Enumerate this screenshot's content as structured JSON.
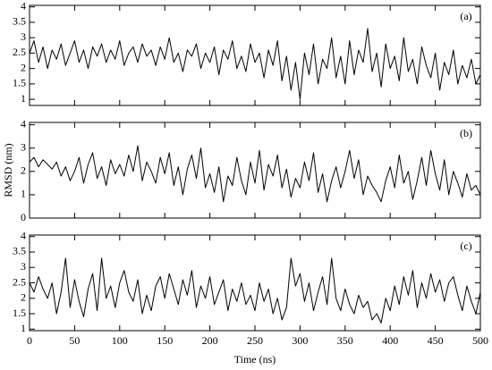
{
  "chart_data": [
    {
      "type": "line",
      "annotation": "(a)",
      "color": "#000000",
      "xlim": [
        0,
        500
      ],
      "xticks": [
        0,
        50,
        100,
        150,
        200,
        250,
        300,
        350,
        400,
        450,
        500
      ],
      "ylim": [
        0.8,
        4.05
      ],
      "yticks": [
        1,
        1.5,
        2,
        2.5,
        3,
        3.5,
        4
      ],
      "x": [
        0,
        5,
        10,
        15,
        20,
        25,
        30,
        35,
        40,
        45,
        50,
        55,
        60,
        65,
        70,
        75,
        80,
        85,
        90,
        95,
        100,
        105,
        110,
        115,
        120,
        125,
        130,
        135,
        140,
        145,
        150,
        155,
        160,
        165,
        170,
        175,
        180,
        185,
        190,
        195,
        200,
        205,
        210,
        215,
        220,
        225,
        230,
        235,
        240,
        245,
        250,
        255,
        260,
        265,
        270,
        275,
        280,
        285,
        290,
        295,
        300,
        305,
        310,
        315,
        320,
        325,
        330,
        335,
        340,
        345,
        350,
        355,
        360,
        365,
        370,
        375,
        380,
        385,
        390,
        395,
        400,
        405,
        410,
        415,
        420,
        425,
        430,
        435,
        440,
        445,
        450,
        455,
        460,
        465,
        470,
        475,
        480,
        485,
        490,
        495,
        500
      ],
      "values": [
        2.5,
        2.9,
        2.2,
        2.7,
        2.0,
        2.6,
        2.3,
        2.8,
        2.1,
        2.5,
        2.9,
        2.2,
        2.6,
        2.0,
        2.7,
        2.4,
        2.8,
        2.2,
        2.6,
        2.3,
        2.9,
        2.1,
        2.5,
        2.7,
        2.2,
        2.8,
        2.4,
        2.6,
        2.1,
        2.7,
        2.3,
        3.0,
        2.2,
        2.5,
        1.9,
        2.6,
        2.4,
        2.8,
        2.0,
        2.5,
        2.2,
        2.7,
        1.8,
        2.6,
        2.3,
        2.9,
        2.0,
        2.4,
        1.9,
        2.8,
        2.2,
        2.5,
        1.7,
        2.6,
        2.1,
        2.9,
        1.6,
        2.4,
        1.3,
        2.2,
        1.0,
        2.5,
        1.8,
        2.8,
        1.5,
        2.3,
        2.0,
        3.0,
        1.7,
        2.4,
        1.5,
        2.9,
        1.8,
        2.6,
        2.2,
        3.3,
        1.9,
        2.5,
        1.4,
        2.8,
        2.0,
        2.4,
        1.6,
        3.0,
        1.9,
        2.3,
        1.5,
        2.7,
        2.1,
        1.7,
        2.5,
        1.3,
        2.2,
        1.8,
        2.6,
        1.5,
        2.1,
        1.7,
        2.3,
        1.5,
        1.8
      ]
    },
    {
      "type": "line",
      "annotation": "(b)",
      "color": "#000000",
      "ylabel": "RMSD (nm)",
      "xlim": [
        0,
        500
      ],
      "xticks": [
        0,
        50,
        100,
        150,
        200,
        250,
        300,
        350,
        400,
        450,
        500
      ],
      "ylim": [
        0,
        4.1
      ],
      "yticks": [
        0,
        1,
        2,
        3,
        4
      ],
      "x": [
        0,
        5,
        10,
        15,
        20,
        25,
        30,
        35,
        40,
        45,
        50,
        55,
        60,
        65,
        70,
        75,
        80,
        85,
        90,
        95,
        100,
        105,
        110,
        115,
        120,
        125,
        130,
        135,
        140,
        145,
        150,
        155,
        160,
        165,
        170,
        175,
        180,
        185,
        190,
        195,
        200,
        205,
        210,
        215,
        220,
        225,
        230,
        235,
        240,
        245,
        250,
        255,
        260,
        265,
        270,
        275,
        280,
        285,
        290,
        295,
        300,
        305,
        310,
        315,
        320,
        325,
        330,
        335,
        340,
        345,
        350,
        355,
        360,
        365,
        370,
        375,
        380,
        385,
        390,
        395,
        400,
        405,
        410,
        415,
        420,
        425,
        430,
        435,
        440,
        445,
        450,
        455,
        460,
        465,
        470,
        475,
        480,
        485,
        490,
        495,
        500
      ],
      "values": [
        2.4,
        2.6,
        2.2,
        2.5,
        2.3,
        2.1,
        2.4,
        1.8,
        2.2,
        1.6,
        2.0,
        2.6,
        1.5,
        2.3,
        2.8,
        1.7,
        2.2,
        1.4,
        2.5,
        1.9,
        2.3,
        1.8,
        2.7,
        2.0,
        3.1,
        1.6,
        2.4,
        2.0,
        1.5,
        2.6,
        1.9,
        2.8,
        1.4,
        2.2,
        1.0,
        2.1,
        2.7,
        1.7,
        3.0,
        1.3,
        1.9,
        1.1,
        2.2,
        0.7,
        1.8,
        1.4,
        2.6,
        1.6,
        1.0,
        2.4,
        1.5,
        2.9,
        1.2,
        2.3,
        1.8,
        2.7,
        1.3,
        2.1,
        0.9,
        1.7,
        1.3,
        2.4,
        1.6,
        2.8,
        1.1,
        1.9,
        0.7,
        1.6,
        2.2,
        1.3,
        2.0,
        2.9,
        1.7,
        2.5,
        1.0,
        1.8,
        1.4,
        1.1,
        0.7,
        1.6,
        2.2,
        1.3,
        2.7,
        1.5,
        2.0,
        0.8,
        1.6,
        2.6,
        1.4,
        2.9,
        1.9,
        1.2,
        2.5,
        1.0,
        2.0,
        1.5,
        0.9,
        1.9,
        1.2,
        1.4,
        1.0
      ]
    },
    {
      "type": "line",
      "annotation": "(c)",
      "color": "#000000",
      "xlabel": "Time (ns)",
      "xlim": [
        0,
        500
      ],
      "xticks": [
        0,
        50,
        100,
        150,
        200,
        250,
        300,
        350,
        400,
        450,
        500
      ],
      "ylim": [
        0.95,
        4.05
      ],
      "yticks": [
        1,
        1.5,
        2,
        2.5,
        3,
        3.5,
        4
      ],
      "x": [
        0,
        5,
        10,
        15,
        20,
        25,
        30,
        35,
        40,
        45,
        50,
        55,
        60,
        65,
        70,
        75,
        80,
        85,
        90,
        95,
        100,
        105,
        110,
        115,
        120,
        125,
        130,
        135,
        140,
        145,
        150,
        155,
        160,
        165,
        170,
        175,
        180,
        185,
        190,
        195,
        200,
        205,
        210,
        215,
        220,
        225,
        230,
        235,
        240,
        245,
        250,
        255,
        260,
        265,
        270,
        275,
        280,
        285,
        290,
        295,
        300,
        305,
        310,
        315,
        320,
        325,
        330,
        335,
        340,
        345,
        350,
        355,
        360,
        365,
        370,
        375,
        380,
        385,
        390,
        395,
        400,
        405,
        410,
        415,
        420,
        425,
        430,
        435,
        440,
        445,
        450,
        455,
        460,
        465,
        470,
        475,
        480,
        485,
        490,
        495,
        500
      ],
      "values": [
        2.5,
        2.2,
        2.7,
        2.3,
        2.0,
        2.5,
        1.5,
        2.2,
        3.3,
        1.7,
        2.6,
        1.9,
        1.4,
        2.3,
        2.8,
        1.6,
        3.3,
        2.0,
        2.4,
        1.7,
        2.5,
        2.9,
        2.2,
        1.9,
        2.6,
        1.5,
        2.1,
        1.6,
        2.4,
        2.7,
        2.0,
        2.8,
        2.3,
        1.8,
        2.6,
        2.1,
        2.9,
        1.7,
        2.4,
        2.0,
        2.7,
        1.8,
        2.2,
        2.6,
        1.6,
        2.3,
        1.9,
        2.5,
        1.8,
        2.1,
        1.6,
        2.5,
        1.9,
        2.3,
        1.5,
        2.0,
        1.3,
        1.7,
        3.3,
        2.4,
        2.8,
        1.9,
        2.5,
        1.6,
        2.2,
        2.7,
        1.8,
        3.3,
        2.0,
        1.6,
        2.3,
        1.8,
        1.5,
        2.1,
        1.7,
        1.9,
        1.3,
        1.5,
        1.2,
        2.0,
        1.6,
        2.4,
        1.8,
        2.7,
        2.1,
        2.9,
        1.7,
        2.5,
        2.0,
        2.8,
        2.2,
        2.6,
        1.9,
        2.5,
        2.7,
        2.1,
        1.6,
        2.4,
        1.9,
        1.5,
        2.2
      ]
    }
  ]
}
